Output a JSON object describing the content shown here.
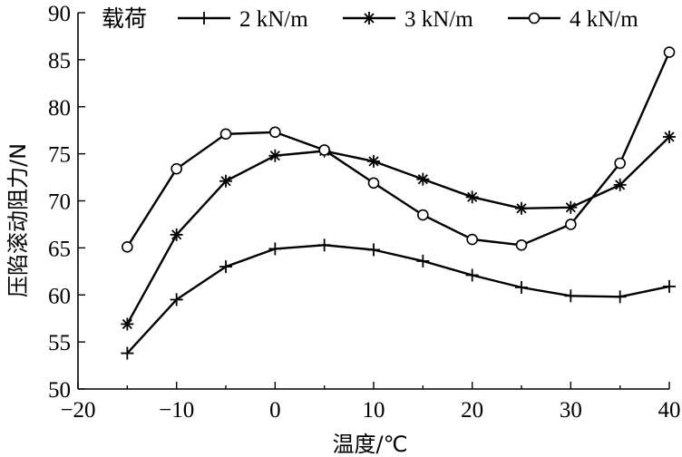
{
  "chart_data": {
    "type": "line",
    "xlabel": "温度/℃",
    "ylabel": "压陷滚动阻力/N",
    "xlim": [
      -20,
      40
    ],
    "ylim": [
      50,
      90
    ],
    "xticks": [
      -20,
      -10,
      0,
      10,
      20,
      30,
      40
    ],
    "yticks": [
      50,
      55,
      60,
      65,
      70,
      75,
      80,
      85,
      90
    ],
    "grid": false,
    "legend": {
      "title": "载荷",
      "placement": "top"
    },
    "x": [
      -15,
      -10,
      -5,
      0,
      5,
      10,
      15,
      20,
      25,
      30,
      35,
      40
    ],
    "series": [
      {
        "name": "2 kN/m",
        "marker": "plus",
        "values": [
          53.8,
          59.5,
          63.0,
          64.9,
          65.3,
          64.8,
          63.6,
          62.1,
          60.8,
          59.9,
          59.8,
          60.9
        ]
      },
      {
        "name": "3 kN/m",
        "marker": "asterisk",
        "values": [
          56.9,
          66.4,
          72.1,
          74.8,
          75.3,
          74.2,
          72.3,
          70.4,
          69.2,
          69.3,
          71.7,
          76.8
        ]
      },
      {
        "name": "4 kN/m",
        "marker": "circle",
        "values": [
          65.1,
          73.4,
          77.1,
          77.3,
          75.4,
          71.9,
          68.5,
          65.9,
          65.3,
          67.5,
          74.0,
          85.8
        ]
      }
    ]
  }
}
